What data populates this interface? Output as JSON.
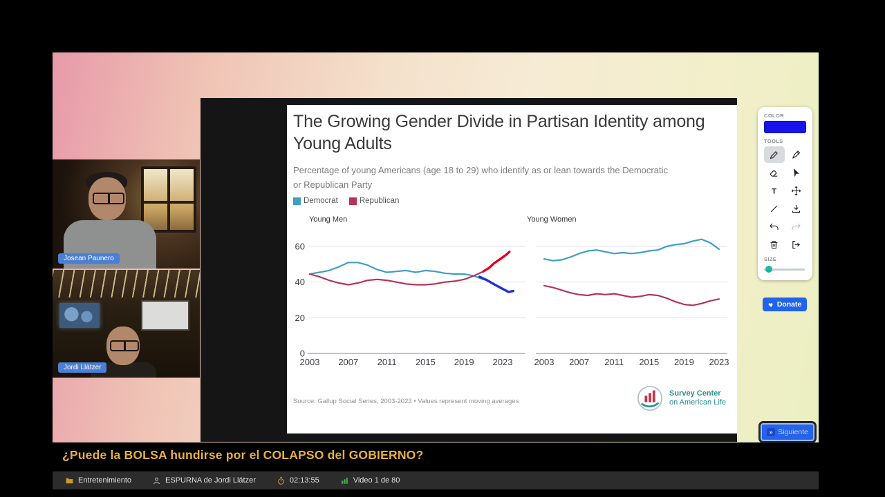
{
  "stream": {
    "headline": "¿Puede la BOLSA hundirse por el COLAPSO del GOBIERNO?",
    "next_button": "Siguiente",
    "statusbar": {
      "category": "Entretenimiento",
      "show": "ESPURNA de Jordi Llátzer",
      "elapsed": "02:13:55",
      "video_counter": "Video 1 de 80"
    }
  },
  "webcams": [
    {
      "name": "Josean Paunero"
    },
    {
      "name": "Jordi Llátzer"
    }
  ],
  "toolbar": {
    "color_label": "COLOR",
    "tools_label": "TOOLS",
    "size_label": "SIZE",
    "donate_label": "Donate",
    "selected_color": "#1812ee",
    "tools": [
      "pen",
      "highlighter",
      "eraser",
      "cursor",
      "text",
      "move",
      "line",
      "download",
      "undo",
      "redo",
      "trash",
      "exit"
    ]
  },
  "chart_data": {
    "type": "line",
    "title": "The Growing Gender Divide in Partisan Identity among Young Adults",
    "title_lines": [
      "The Growing Gender Divide in Partisan Identity among",
      "Young Adults"
    ],
    "subtitle_lines": [
      "Percentage of young Americans (age 18 to 29) who identify as or lean towards the Democratic",
      "or Republican Party"
    ],
    "legend": [
      {
        "label": "Democrat",
        "color": "#3f9ec2"
      },
      {
        "label": "Republican",
        "color": "#b5335a"
      }
    ],
    "yticks": [
      0,
      20,
      40,
      60
    ],
    "ylim": [
      0,
      65
    ],
    "xticks": [
      2003,
      2007,
      2011,
      2015,
      2019,
      2023
    ],
    "source": "Source: Gallup Social Series, 2003-2023 • Values represent moving averages",
    "logo_line1": "Survey Center",
    "logo_line2": "on American Life",
    "panels": [
      {
        "label": "Young Men",
        "series": [
          {
            "name": "Democrat",
            "color": "#3f9ec2",
            "points": [
              [
                2003,
                44.5
              ],
              [
                2004,
                45.5
              ],
              [
                2005,
                46.5
              ],
              [
                2006,
                48.5
              ],
              [
                2007,
                51
              ],
              [
                2008,
                51
              ],
              [
                2009,
                49.5
              ],
              [
                2010,
                47
              ],
              [
                2011,
                45.5
              ],
              [
                2012,
                46
              ],
              [
                2013,
                46.5
              ],
              [
                2014,
                45.5
              ],
              [
                2015,
                46.5
              ],
              [
                2016,
                46
              ],
              [
                2017,
                45
              ],
              [
                2018,
                44.5
              ],
              [
                2019,
                44.5
              ],
              [
                2020,
                43.5
              ],
              [
                2021,
                41.5
              ]
            ]
          },
          {
            "name": "Republican",
            "color": "#b5335a",
            "points": [
              [
                2003,
                44.5
              ],
              [
                2004,
                43
              ],
              [
                2005,
                41
              ],
              [
                2006,
                39.5
              ],
              [
                2007,
                38.5
              ],
              [
                2008,
                39.5
              ],
              [
                2009,
                41
              ],
              [
                2010,
                41.5
              ],
              [
                2011,
                41
              ],
              [
                2012,
                40
              ],
              [
                2013,
                39
              ],
              [
                2014,
                38.5
              ],
              [
                2015,
                38.5
              ],
              [
                2016,
                39
              ],
              [
                2017,
                40
              ],
              [
                2018,
                40.5
              ],
              [
                2019,
                41.5
              ],
              [
                2020,
                43.5
              ],
              [
                2021,
                46
              ]
            ]
          }
        ],
        "annotations": [
          {
            "name": "republican-surge-highlight",
            "color": "#e8001c",
            "points": [
              [
                2021,
                46
              ],
              [
                2021.6,
                48
              ],
              [
                2022.1,
                50.5
              ],
              [
                2022.5,
                52
              ],
              [
                2022.9,
                53.5
              ],
              [
                2023.4,
                55.5
              ],
              [
                2023.7,
                57
              ]
            ]
          },
          {
            "name": "democrat-drop-highlight",
            "color": "#2231d4",
            "points": [
              [
                2020.6,
                43
              ],
              [
                2021.4,
                41
              ],
              [
                2022.2,
                38.5
              ],
              [
                2022.9,
                36.5
              ],
              [
                2023.6,
                34.5
              ],
              [
                2024.1,
                35
              ]
            ]
          }
        ]
      },
      {
        "label": "Young Women",
        "series": [
          {
            "name": "Democrat",
            "color": "#3f9ec2",
            "points": [
              [
                2003,
                53
              ],
              [
                2004,
                52
              ],
              [
                2005,
                52.5
              ],
              [
                2006,
                54
              ],
              [
                2007,
                56
              ],
              [
                2008,
                57.5
              ],
              [
                2009,
                58
              ],
              [
                2010,
                57
              ],
              [
                2011,
                56
              ],
              [
                2012,
                56.5
              ],
              [
                2013,
                56
              ],
              [
                2014,
                56.5
              ],
              [
                2015,
                57.5
              ],
              [
                2016,
                58
              ],
              [
                2017,
                60
              ],
              [
                2018,
                61
              ],
              [
                2019,
                61.5
              ],
              [
                2020,
                63
              ],
              [
                2021,
                64
              ],
              [
                2022,
                62
              ],
              [
                2023,
                58.5
              ]
            ]
          },
          {
            "name": "Republican",
            "color": "#b5335a",
            "points": [
              [
                2003,
                38
              ],
              [
                2004,
                37
              ],
              [
                2005,
                35.5
              ],
              [
                2006,
                34
              ],
              [
                2007,
                33
              ],
              [
                2008,
                32.5
              ],
              [
                2009,
                33.5
              ],
              [
                2010,
                33
              ],
              [
                2011,
                33.5
              ],
              [
                2012,
                32.5
              ],
              [
                2013,
                31.5
              ],
              [
                2014,
                32
              ],
              [
                2015,
                33
              ],
              [
                2016,
                32.5
              ],
              [
                2017,
                31
              ],
              [
                2018,
                29
              ],
              [
                2019,
                27.5
              ],
              [
                2020,
                27
              ],
              [
                2021,
                28
              ],
              [
                2022,
                29.5
              ],
              [
                2023,
                30.5
              ]
            ]
          }
        ],
        "annotations": []
      }
    ]
  }
}
